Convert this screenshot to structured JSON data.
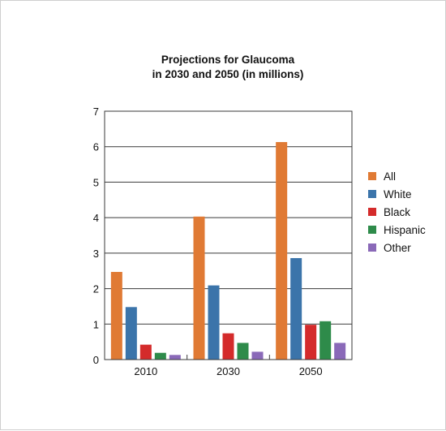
{
  "chart_data": {
    "type": "bar",
    "title": [
      "Projections for Glaucoma",
      "in 2030 and 2050 (in millions)"
    ],
    "categories": [
      "2010",
      "2030",
      "2050"
    ],
    "series": [
      {
        "name": "All",
        "color": "#e07a34",
        "values": [
          2.47,
          4.03,
          6.13
        ]
      },
      {
        "name": "White",
        "color": "#3b74aa",
        "values": [
          1.48,
          2.09,
          2.86
        ]
      },
      {
        "name": "Black",
        "color": "#d42b2b",
        "values": [
          0.42,
          0.74,
          0.98
        ]
      },
      {
        "name": "Hispanic",
        "color": "#2e8b4a",
        "values": [
          0.19,
          0.47,
          1.08
        ]
      },
      {
        "name": "Other",
        "color": "#8a69b8",
        "values": [
          0.13,
          0.22,
          0.47
        ]
      }
    ],
    "ylim": [
      0,
      7
    ],
    "yticks": [
      "0",
      "1",
      "2",
      "3",
      "4",
      "5",
      "6",
      "7"
    ],
    "grid": true,
    "legend": "right"
  }
}
